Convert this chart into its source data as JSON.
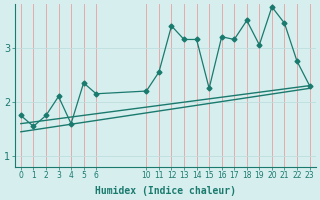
{
  "xlabel": "Humidex (Indice chaleur)",
  "bg_color": "#d6eeee",
  "grid_color_v": "#e8a0a0",
  "grid_color_h": "#c0dede",
  "line_color": "#1a7a6e",
  "xticks_labeled": [
    0,
    1,
    2,
    3,
    4,
    5,
    6,
    10,
    11,
    12,
    13,
    14,
    15,
    16,
    17,
    18,
    19,
    20,
    21,
    22,
    23
  ],
  "xtick_labels": [
    "0",
    "1",
    "2",
    "3",
    "4",
    "5",
    "6",
    "10",
    "11",
    "12",
    "13",
    "14",
    "15",
    "16",
    "17",
    "18",
    "19",
    "20",
    "21",
    "22",
    "23"
  ],
  "yticks": [
    1,
    2,
    3
  ],
  "ylim": [
    0.8,
    3.8
  ],
  "xlim": [
    -0.5,
    23.5
  ],
  "zigzag_x": [
    0,
    1,
    2,
    3,
    4,
    5,
    6,
    10,
    11,
    12,
    13,
    14,
    15,
    16,
    17,
    18,
    19,
    20,
    21,
    22,
    23
  ],
  "zigzag_y": [
    1.75,
    1.55,
    1.75,
    2.1,
    1.6,
    2.35,
    2.15,
    2.2,
    2.55,
    3.4,
    3.15,
    3.15,
    2.25,
    3.2,
    3.15,
    3.5,
    3.05,
    3.75,
    3.45,
    2.75,
    2.3
  ],
  "line1_x": [
    0,
    23
  ],
  "line1_y": [
    1.6,
    2.3
  ],
  "line2_x": [
    0,
    23
  ],
  "line2_y": [
    1.45,
    2.25
  ]
}
